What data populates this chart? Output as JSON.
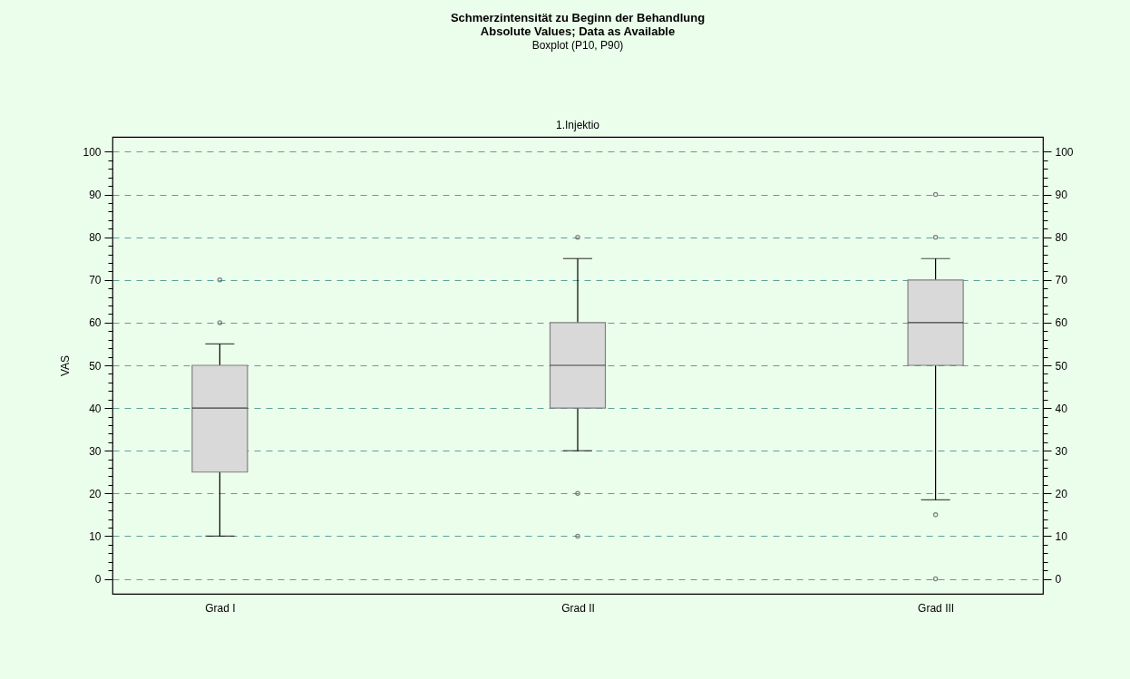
{
  "chart_data": {
    "type": "box",
    "title": "Schmerzintensität zu Beginn der Behandlung",
    "subtitle": "Absolute Values; Data as Available",
    "annotations": [
      "Boxplot (P10, P90)",
      "1.Injektio"
    ],
    "ylabel": "VAS",
    "categories": [
      "Grad I",
      "Grad II",
      "Grad III"
    ],
    "series": [
      {
        "color": "#d9d9d9",
        "boxes": [
          {
            "low": 10,
            "q1": 25,
            "median": 40,
            "q3": 50,
            "high": 55,
            "outliers": [
              60,
              70
            ]
          },
          {
            "low": 30,
            "q1": 40,
            "median": 50,
            "q3": 60,
            "high": 75,
            "outliers": [
              10,
              20,
              80
            ]
          },
          {
            "low": 18.5,
            "q1": 50,
            "median": 60,
            "q3": 70,
            "high": 75,
            "outliers": [
              0,
              15,
              80,
              90
            ]
          }
        ]
      }
    ],
    "marker": "circle",
    "grid": "y",
    "legend": false,
    "ylim": [
      -3.5,
      103.5
    ],
    "yticks": [
      0,
      {
        "value": 2,
        "label": null
      },
      {
        "value": 4,
        "label": null
      },
      {
        "value": 6,
        "label": null
      },
      {
        "value": 8,
        "label": null
      },
      10,
      {
        "value": 12,
        "label": null
      },
      {
        "value": 14,
        "label": null
      },
      {
        "value": 16,
        "label": null
      },
      {
        "value": 18,
        "label": null
      },
      20,
      {
        "value": 22,
        "label": null
      },
      {
        "value": 24,
        "label": null
      },
      {
        "value": 26,
        "label": null
      },
      {
        "value": 28,
        "label": null
      },
      30,
      {
        "value": 32,
        "label": null
      },
      {
        "value": 34,
        "label": null
      },
      {
        "value": 36,
        "label": null
      },
      {
        "value": 38,
        "label": null
      },
      40,
      {
        "value": 42,
        "label": null
      },
      {
        "value": 44,
        "label": null
      },
      {
        "value": 46,
        "label": null
      },
      {
        "value": 48,
        "label": null
      },
      50,
      {
        "value": 52,
        "label": null
      },
      {
        "value": 54,
        "label": null
      },
      {
        "value": 56,
        "label": null
      },
      {
        "value": 58,
        "label": null
      },
      60,
      {
        "value": 62,
        "label": null
      },
      {
        "value": 64,
        "label": null
      },
      {
        "value": 66,
        "label": null
      },
      {
        "value": 68,
        "label": null
      },
      70,
      {
        "value": 72,
        "label": null
      },
      {
        "value": 74,
        "label": null
      },
      {
        "value": 76,
        "label": null
      },
      {
        "value": 78,
        "label": null
      },
      80,
      {
        "value": 82,
        "label": null
      },
      {
        "value": 84,
        "label": null
      },
      {
        "value": 86,
        "label": null
      },
      {
        "value": 88,
        "label": null
      },
      90,
      {
        "value": 92,
        "label": null
      },
      {
        "value": 94,
        "label": null
      },
      {
        "value": 96,
        "label": null
      },
      {
        "value": 98,
        "label": null
      },
      100
    ],
    "y2lim": [
      -3.5,
      103.5
    ],
    "y2ticks": [
      0,
      {
        "value": 2,
        "label": null
      },
      {
        "value": 4,
        "label": null
      },
      {
        "value": 6,
        "label": null
      },
      {
        "value": 8,
        "label": null
      },
      10,
      {
        "value": 12,
        "label": null
      },
      {
        "value": 14,
        "label": null
      },
      {
        "value": 16,
        "label": null
      },
      {
        "value": 18,
        "label": null
      },
      20,
      {
        "value": 22,
        "label": null
      },
      {
        "value": 24,
        "label": null
      },
      {
        "value": 26,
        "label": null
      },
      {
        "value": 28,
        "label": null
      },
      30,
      {
        "value": 32,
        "label": null
      },
      {
        "value": 34,
        "label": null
      },
      {
        "value": 36,
        "label": null
      },
      {
        "value": 38,
        "label": null
      },
      40,
      {
        "value": 42,
        "label": null
      },
      {
        "value": 44,
        "label": null
      },
      {
        "value": 46,
        "label": null
      },
      {
        "value": 48,
        "label": null
      },
      50,
      {
        "value": 52,
        "label": null
      },
      {
        "value": 54,
        "label": null
      },
      {
        "value": 56,
        "label": null
      },
      {
        "value": 58,
        "label": null
      },
      60,
      {
        "value": 62,
        "label": null
      },
      {
        "value": 64,
        "label": null
      },
      {
        "value": 66,
        "label": null
      },
      {
        "value": 68,
        "label": null
      },
      70,
      {
        "value": 72,
        "label": null
      },
      {
        "value": 74,
        "label": null
      },
      {
        "value": 76,
        "label": null
      },
      {
        "value": 78,
        "label": null
      },
      80,
      {
        "value": 82,
        "label": null
      },
      {
        "value": 84,
        "label": null
      },
      {
        "value": 86,
        "label": null
      },
      {
        "value": 88,
        "label": null
      },
      90,
      {
        "value": 92,
        "label": null
      },
      {
        "value": 94,
        "label": null
      },
      {
        "value": 96,
        "label": null
      },
      {
        "value": 98,
        "label": null
      },
      100
    ]
  }
}
